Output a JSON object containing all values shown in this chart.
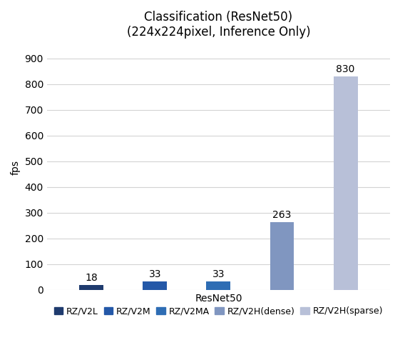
{
  "title": "Classification (ResNet50)\n(224x224pixel, Inference Only)",
  "xlabel": "ResNet50",
  "ylabel": "fps",
  "ylim": [
    0,
    950
  ],
  "yticks": [
    0,
    100,
    200,
    300,
    400,
    500,
    600,
    700,
    800,
    900
  ],
  "categories": [
    "RZ/V2L",
    "RZ/V2M",
    "RZ/V2MA",
    "RZ/V2H(dense)",
    "RZ/V2H(sparse)"
  ],
  "values": [
    18,
    33,
    33,
    263,
    830
  ],
  "bar_colors": [
    "#1F3B6E",
    "#2458A8",
    "#2E6DB4",
    "#8096C0",
    "#B8C0D8"
  ],
  "legend_labels": [
    "RZ/V2L",
    "RZ/V2M",
    "RZ/V2MA",
    "RZ/V2H(dense)",
    "RZ/V2H(sparse)"
  ],
  "title_fontsize": 12,
  "axis_label_fontsize": 10,
  "tick_fontsize": 10,
  "legend_fontsize": 9,
  "bar_label_fontsize": 10,
  "background_color": "#ffffff",
  "grid_color": "#d3d3d3"
}
